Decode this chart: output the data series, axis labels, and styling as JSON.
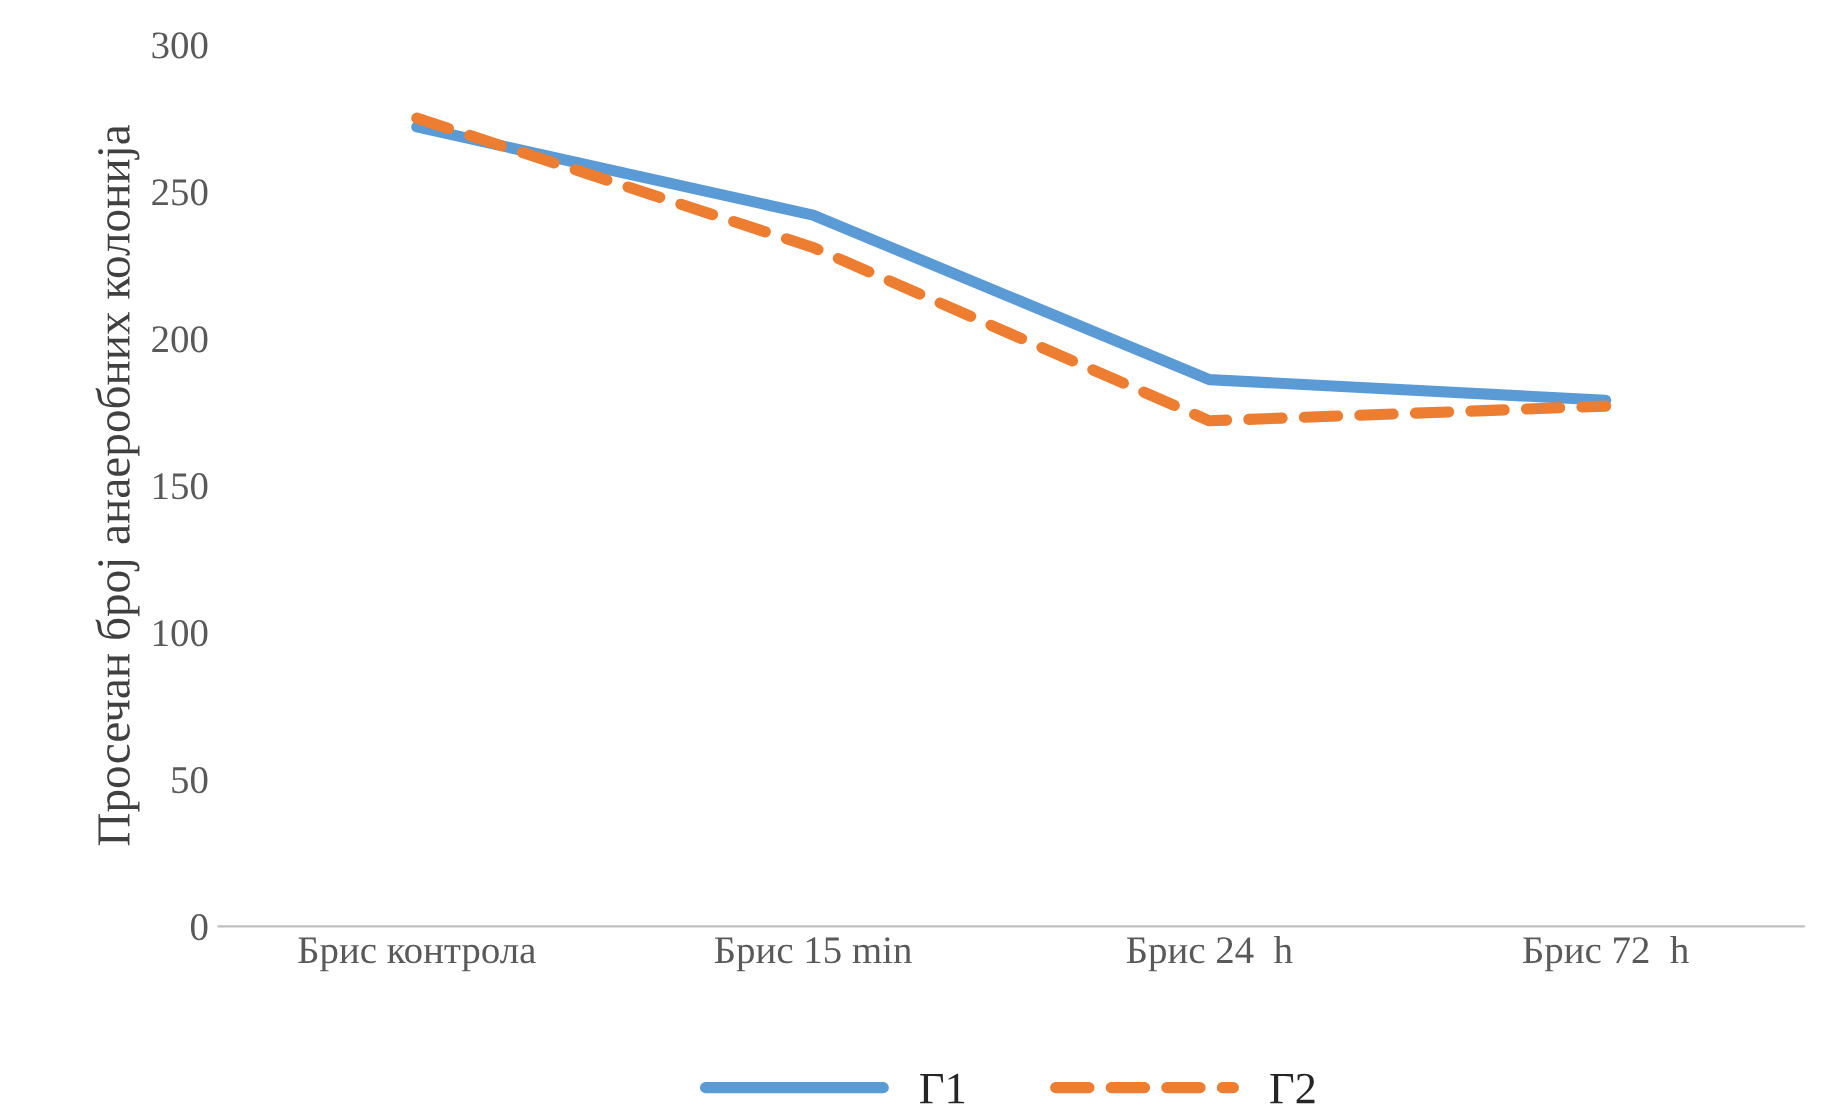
{
  "chart_data": {
    "type": "line",
    "ylabel": "Просечан број анаеробних колонија",
    "categories": [
      "Брис контрола",
      "Брис 15 min",
      "Брис 24  h",
      "Брис 72  h"
    ],
    "series": [
      {
        "name": "Г1",
        "color": "#5b9bd5",
        "values": [
          272,
          242,
          186,
          179
        ],
        "line_style": "solid"
      },
      {
        "name": "Г2",
        "color": "#ed7d31",
        "values": [
          275,
          231,
          172,
          177
        ],
        "line_style": "dashed"
      }
    ],
    "ylim": [
      0,
      300
    ],
    "yticks": [
      0,
      50,
      100,
      150,
      200,
      250,
      300
    ],
    "grid": false,
    "legend": "bottom"
  }
}
